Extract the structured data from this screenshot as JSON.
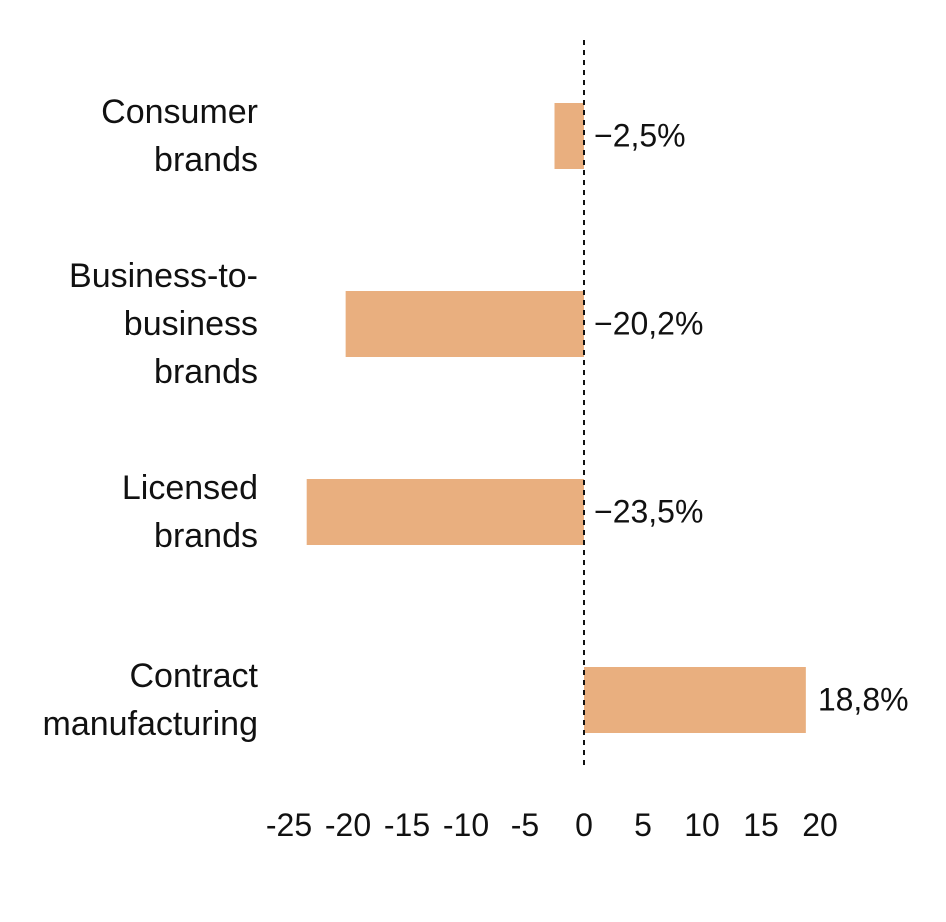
{
  "chart_data": {
    "type": "bar",
    "orientation": "horizontal",
    "categories": [
      [
        "Consumer",
        "brands"
      ],
      [
        "Business-to-",
        "business",
        "brands"
      ],
      [
        "Licensed",
        "brands"
      ],
      [
        "Contract",
        "manufacturing"
      ]
    ],
    "values": [
      -2.5,
      -20.2,
      -23.5,
      18.8
    ],
    "data_labels": [
      "−2,5%",
      "−20,2%",
      "−23,5%",
      "18,8%"
    ],
    "xticks": [
      -25,
      -20,
      -15,
      -10,
      -5,
      0,
      5,
      10,
      15,
      20
    ],
    "xtick_labels": [
      "-25",
      "-20",
      "-15",
      "-10",
      "-5",
      "0",
      "5",
      "10",
      "15",
      "20"
    ],
    "xlim": [
      -25,
      20
    ],
    "zero_line": "dashed",
    "grid": false,
    "bar_color": "#E9AF7F"
  }
}
